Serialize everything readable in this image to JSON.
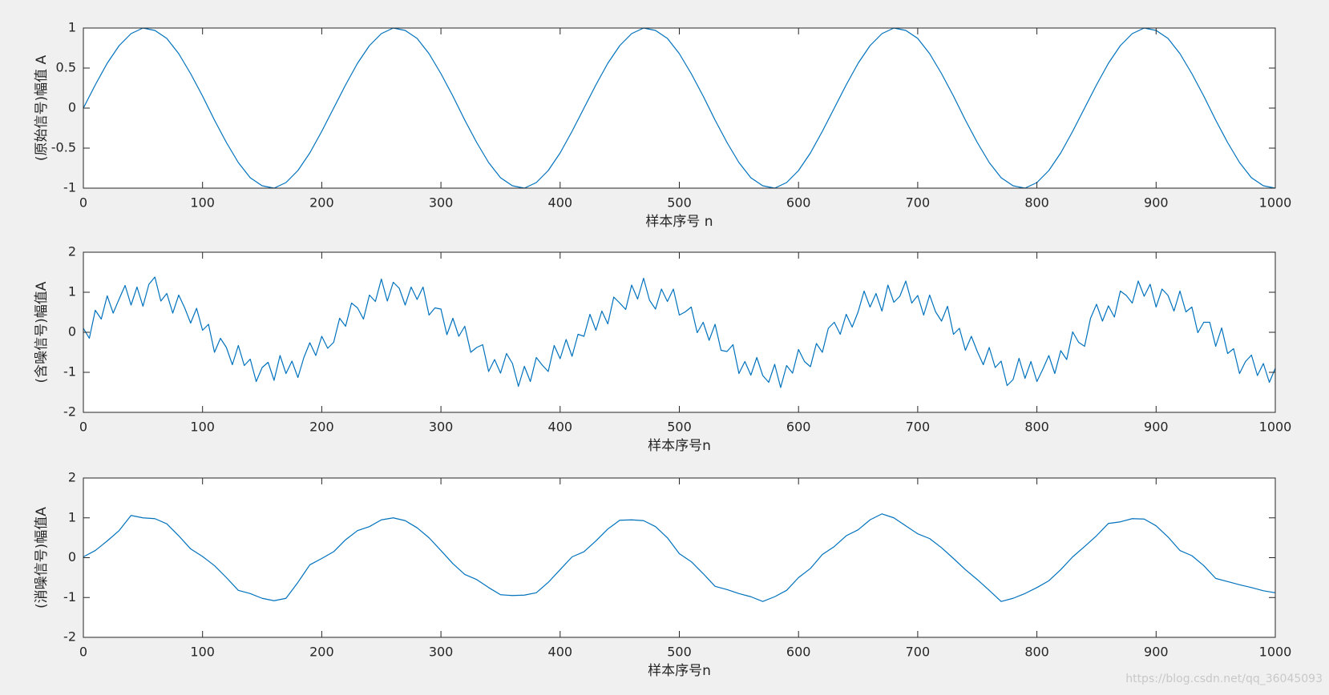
{
  "chart_data": [
    {
      "type": "line",
      "ylabel": "(原始信号)幅值 A",
      "xlabel": "样本序号 n",
      "xlim": [
        0,
        1000
      ],
      "ylim": [
        -1,
        1
      ],
      "xticks": [
        0,
        100,
        200,
        300,
        400,
        500,
        600,
        700,
        800,
        900,
        1000
      ],
      "yticks": [
        -1,
        -0.5,
        0,
        0.5,
        1
      ],
      "color": "#0072bd",
      "x": [
        0,
        10,
        20,
        30,
        40,
        50,
        60,
        70,
        80,
        90,
        100,
        110,
        120,
        130,
        140,
        150,
        160,
        170,
        180,
        190,
        200,
        210,
        220,
        230,
        240,
        250,
        260,
        270,
        280,
        290,
        300,
        310,
        320,
        330,
        340,
        350,
        360,
        370,
        380,
        390,
        400,
        410,
        420,
        430,
        440,
        450,
        460,
        470,
        480,
        490,
        500,
        510,
        520,
        530,
        540,
        550,
        560,
        570,
        580,
        590,
        600,
        610,
        620,
        630,
        640,
        650,
        660,
        670,
        680,
        690,
        700,
        710,
        720,
        730,
        740,
        750,
        760,
        770,
        780,
        790,
        800,
        810,
        820,
        830,
        840,
        850,
        860,
        870,
        880,
        890,
        900,
        910,
        920,
        930,
        940,
        950,
        960,
        970,
        980,
        990,
        1000
      ],
      "values": [
        0,
        0.29,
        0.56,
        0.78,
        0.93,
        1.0,
        0.97,
        0.87,
        0.68,
        0.43,
        0.15,
        -0.15,
        -0.43,
        -0.68,
        -0.87,
        -0.97,
        -1.0,
        -0.93,
        -0.78,
        -0.56,
        -0.29,
        0,
        0.29,
        0.56,
        0.78,
        0.93,
        1.0,
        0.97,
        0.87,
        0.68,
        0.43,
        0.15,
        -0.15,
        -0.43,
        -0.68,
        -0.87,
        -0.97,
        -1.0,
        -0.93,
        -0.78,
        -0.56,
        -0.29,
        0,
        0.29,
        0.56,
        0.78,
        0.93,
        1.0,
        0.97,
        0.87,
        0.68,
        0.43,
        0.15,
        -0.15,
        -0.43,
        -0.68,
        -0.87,
        -0.97,
        -1.0,
        -0.93,
        -0.78,
        -0.56,
        -0.29,
        0,
        0.29,
        0.56,
        0.78,
        0.93,
        1.0,
        0.97,
        0.87,
        0.68,
        0.43,
        0.15,
        -0.15,
        -0.43,
        -0.68,
        -0.87,
        -0.97,
        -1.0,
        -0.93,
        -0.78,
        -0.56,
        -0.29,
        0,
        0.29,
        0.56,
        0.78,
        0.93,
        1.0,
        0.97,
        0.87,
        0.68,
        0.43,
        0.15,
        -0.15,
        -0.43,
        -0.68,
        -0.87,
        -0.97,
        -1.0
      ]
    },
    {
      "type": "line",
      "ylabel": "(含噪信号)幅值A",
      "xlabel": "样本序号n",
      "xlim": [
        0,
        1000
      ],
      "ylim": [
        -2,
        2
      ],
      "xticks": [
        0,
        100,
        200,
        300,
        400,
        500,
        600,
        700,
        800,
        900,
        1000
      ],
      "yticks": [
        -2,
        -1,
        0,
        1,
        2
      ],
      "color": "#0072bd",
      "x": [
        0,
        5,
        10,
        15,
        20,
        25,
        30,
        35,
        40,
        45,
        50,
        55,
        60,
        65,
        70,
        75,
        80,
        85,
        90,
        95,
        100,
        105,
        110,
        115,
        120,
        125,
        130,
        135,
        140,
        145,
        150,
        155,
        160,
        165,
        170,
        175,
        180,
        185,
        190,
        195,
        200,
        205,
        210,
        215,
        220,
        225,
        230,
        235,
        240,
        245,
        250,
        255,
        260,
        265,
        270,
        275,
        280,
        285,
        290,
        295,
        300,
        305,
        310,
        315,
        320,
        325,
        330,
        335,
        340,
        345,
        350,
        355,
        360,
        365,
        370,
        375,
        380,
        385,
        390,
        395,
        400,
        405,
        410,
        415,
        420,
        425,
        430,
        435,
        440,
        445,
        450,
        455,
        460,
        465,
        470,
        475,
        480,
        485,
        490,
        495,
        500,
        505,
        510,
        515,
        520,
        525,
        530,
        535,
        540,
        545,
        550,
        555,
        560,
        565,
        570,
        575,
        580,
        585,
        590,
        595,
        600,
        605,
        610,
        615,
        620,
        625,
        630,
        635,
        640,
        645,
        650,
        655,
        660,
        665,
        670,
        675,
        680,
        685,
        690,
        695,
        700,
        705,
        710,
        715,
        720,
        725,
        730,
        735,
        740,
        745,
        750,
        755,
        760,
        765,
        770,
        775,
        780,
        785,
        790,
        795,
        800,
        805,
        810,
        815,
        820,
        825,
        830,
        835,
        840,
        845,
        850,
        855,
        860,
        865,
        870,
        875,
        880,
        885,
        890,
        895,
        900,
        905,
        910,
        915,
        920,
        925,
        930,
        935,
        940,
        945,
        950,
        955,
        960,
        965,
        970,
        975,
        980,
        985,
        990,
        995,
        1000
      ],
      "values": [
        0.1,
        -0.15,
        0.55,
        0.33,
        0.91,
        0.48,
        0.83,
        1.17,
        0.68,
        1.13,
        0.65,
        1.2,
        1.38,
        0.78,
        0.97,
        0.48,
        0.93,
        0.61,
        0.23,
        0.6,
        0.05,
        0.2,
        -0.5,
        -0.15,
        -0.38,
        -0.81,
        -0.33,
        -0.83,
        -0.67,
        -1.23,
        -0.88,
        -0.75,
        -1.2,
        -0.58,
        -1.03,
        -0.72,
        -1.13,
        -0.63,
        -0.26,
        -0.58,
        -0.1,
        -0.4,
        -0.25,
        0.35,
        0.15,
        0.73,
        0.61,
        0.33,
        0.93,
        0.77,
        1.33,
        0.78,
        1.25,
        1.1,
        0.68,
        1.13,
        0.82,
        1.13,
        0.43,
        0.61,
        0.58,
        -0.06,
        0.35,
        -0.1,
        0.15,
        -0.5,
        -0.38,
        -0.31,
        -0.98,
        -0.68,
        -1.02,
        -0.53,
        -0.78,
        -1.35,
        -0.85,
        -1.23,
        -0.63,
        -0.82,
        -0.98,
        -0.33,
        -0.66,
        -0.18,
        -0.6,
        -0.05,
        -0.1,
        0.45,
        0.05,
        0.53,
        0.21,
        0.88,
        0.73,
        0.57,
        1.18,
        0.83,
        1.35,
        0.8,
        0.58,
        1.08,
        0.77,
        1.08,
        0.43,
        0.51,
        0.63,
        -0.01,
        0.25,
        -0.2,
        0.2,
        -0.45,
        -0.48,
        -0.31,
        -1.03,
        -0.73,
        -1.07,
        -0.63,
        -1.08,
        -1.25,
        -0.8,
        -1.38,
        -0.83,
        -1.02,
        -0.43,
        -0.73,
        -0.86,
        -0.28,
        -0.5,
        0.1,
        0.25,
        -0.05,
        0.45,
        0.13,
        0.51,
        1.03,
        0.63,
        0.97,
        0.53,
        1.18,
        0.75,
        0.9,
        1.28,
        0.73,
        0.92,
        0.43,
        0.93,
        0.51,
        0.28,
        0.65,
        -0.05,
        0.1,
        -0.45,
        -0.1,
        -0.48,
        -0.81,
        -0.38,
        -0.88,
        -0.72,
        -1.33,
        -1.18,
        -0.65,
        -1.15,
        -0.73,
        -1.23,
        -0.92,
        -0.58,
        -1.03,
        -0.46,
        -0.68,
        0.01,
        -0.25,
        -0.35,
        0.35,
        0.7,
        0.28,
        0.66,
        0.38,
        1.03,
        0.92,
        0.73,
        1.28,
        0.9,
        1.2,
        0.63,
        1.08,
        0.92,
        0.53,
        1.03,
        0.51,
        0.63,
        -0.01,
        0.25,
        0.25,
        -0.35,
        0.11,
        -0.53,
        -0.41,
        -1.03,
        -0.73,
        -0.57,
        -1.08,
        -0.78,
        -1.25,
        -0.9
      ]
    },
    {
      "type": "line",
      "ylabel": "(消噪信号)幅值A",
      "xlabel": "样本序号n",
      "xlim": [
        0,
        1000
      ],
      "ylim": [
        -2,
        2
      ],
      "xticks": [
        0,
        100,
        200,
        300,
        400,
        500,
        600,
        700,
        800,
        900,
        1000
      ],
      "yticks": [
        -2,
        -1,
        0,
        1,
        2
      ],
      "color": "#0072bd",
      "x": [
        0,
        10,
        20,
        30,
        40,
        50,
        60,
        70,
        80,
        90,
        100,
        110,
        120,
        130,
        140,
        150,
        160,
        170,
        180,
        190,
        200,
        210,
        220,
        230,
        240,
        250,
        260,
        270,
        280,
        290,
        300,
        310,
        320,
        330,
        340,
        350,
        360,
        370,
        380,
        390,
        400,
        410,
        420,
        430,
        440,
        450,
        460,
        470,
        480,
        490,
        500,
        510,
        520,
        530,
        540,
        550,
        560,
        570,
        580,
        590,
        600,
        610,
        620,
        630,
        640,
        650,
        660,
        670,
        680,
        690,
        700,
        710,
        720,
        730,
        740,
        750,
        760,
        770,
        780,
        790,
        800,
        810,
        820,
        830,
        840,
        850,
        860,
        870,
        880,
        890,
        900,
        910,
        920,
        930,
        940,
        950,
        960,
        970,
        980,
        990,
        1000
      ],
      "values": [
        0.02,
        0.18,
        0.42,
        0.68,
        1.06,
        1.0,
        0.98,
        0.85,
        0.55,
        0.22,
        0.03,
        -0.2,
        -0.5,
        -0.82,
        -0.9,
        -1.02,
        -1.08,
        -1.02,
        -0.62,
        -0.18,
        -0.02,
        0.15,
        0.45,
        0.68,
        0.78,
        0.95,
        1.0,
        0.93,
        0.75,
        0.5,
        0.18,
        -0.15,
        -0.42,
        -0.55,
        -0.75,
        -0.93,
        -0.95,
        -0.94,
        -0.88,
        -0.62,
        -0.3,
        0.02,
        0.15,
        0.42,
        0.72,
        0.94,
        0.95,
        0.93,
        0.78,
        0.5,
        0.1,
        -0.1,
        -0.4,
        -0.72,
        -0.8,
        -0.9,
        -0.98,
        -1.1,
        -0.98,
        -0.82,
        -0.5,
        -0.27,
        0.08,
        0.28,
        0.55,
        0.7,
        0.95,
        1.1,
        1.0,
        0.8,
        0.6,
        0.48,
        0.25,
        -0.02,
        -0.3,
        -0.55,
        -0.82,
        -1.1,
        -1.02,
        -0.9,
        -0.75,
        -0.58,
        -0.3,
        0.02,
        0.28,
        0.55,
        0.86,
        0.9,
        0.98,
        0.97,
        0.8,
        0.52,
        0.18,
        0.05,
        -0.2,
        -0.52,
        -0.6,
        -0.68,
        -0.75,
        -0.83,
        -0.88
      ]
    }
  ],
  "watermark": "https://blog.csdn.net/qq_36045093"
}
